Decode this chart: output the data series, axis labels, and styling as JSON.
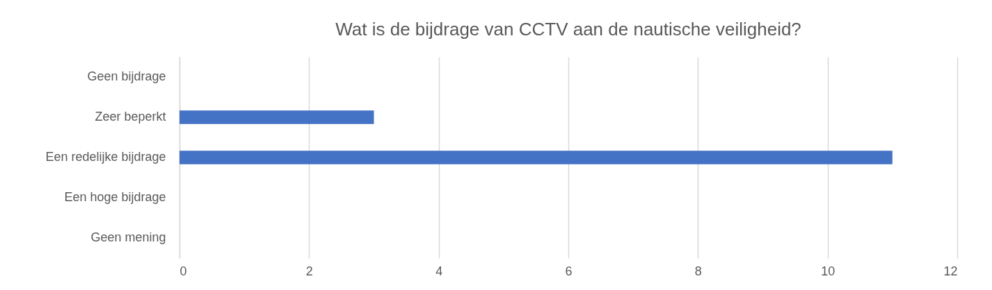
{
  "chart_data": {
    "type": "bar",
    "orientation": "horizontal",
    "title": "Wat is de bijdrage van CCTV aan de nautische veiligheid?",
    "categories": [
      "Geen bijdrage",
      "Zeer beperkt",
      "Een redelijke bijdrage",
      "Een hoge bijdrage",
      "Geen mening"
    ],
    "values": [
      0,
      3,
      11,
      0,
      0
    ],
    "color": "#4472c4",
    "xlim": [
      0,
      12
    ],
    "xticks": [
      0,
      2,
      4,
      6,
      8,
      10,
      12
    ],
    "grid": "x"
  }
}
